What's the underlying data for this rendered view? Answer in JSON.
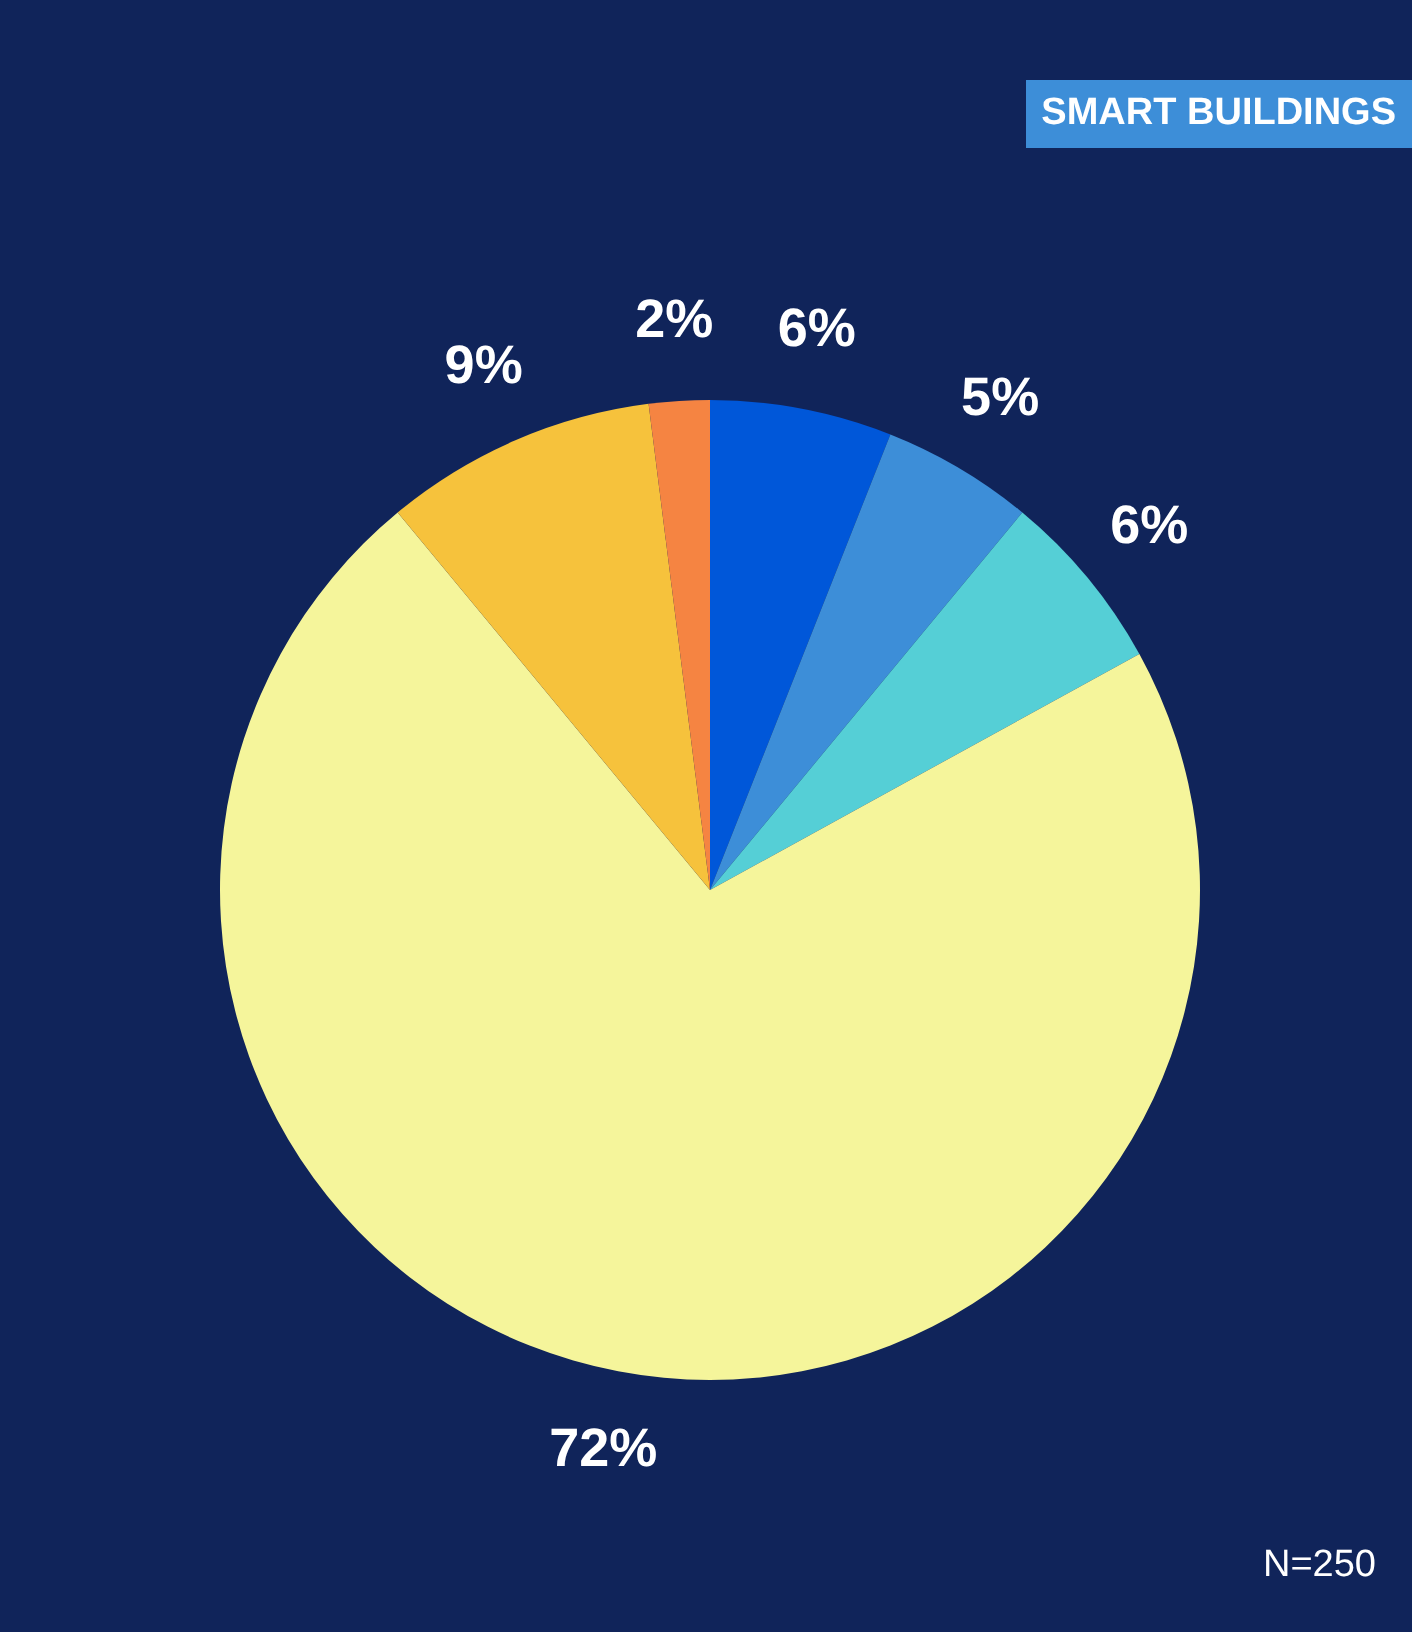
{
  "chart_data": {
    "type": "pie",
    "title": "SMART BUILDINGS",
    "categories": [
      null,
      null,
      null,
      null,
      null,
      null
    ],
    "values": [
      6,
      5,
      6,
      72,
      9,
      2
    ],
    "colors": [
      "#0057d9",
      "#3d8ed8",
      "#55cfd6",
      "#f5f59b",
      "#f6c23c",
      "#f58442"
    ],
    "value_labels": [
      "6%",
      "5%",
      "6%",
      "72%",
      "9%",
      "2%"
    ],
    "annotations": [
      "N=250"
    ]
  }
}
